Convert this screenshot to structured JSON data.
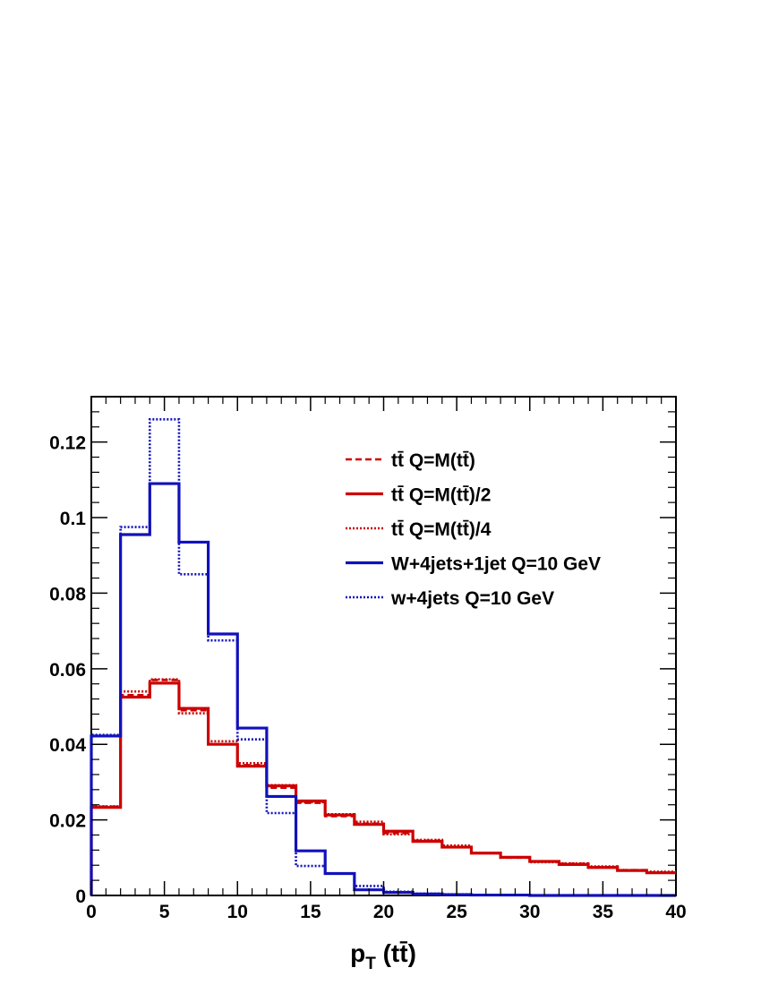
{
  "chart_data": {
    "type": "line",
    "style": "step-histogram",
    "xlabel": "p_T (tt̄)",
    "xlabel_parts": {
      "main": "p",
      "sub": "T",
      "rest": " (tt̄)"
    },
    "ylabel": "",
    "xlim": [
      0,
      40
    ],
    "ylim": [
      0,
      0.132
    ],
    "x_ticks": [
      0,
      5,
      10,
      15,
      20,
      25,
      30,
      35,
      40
    ],
    "y_ticks": [
      0,
      0.02,
      0.04,
      0.06,
      0.08,
      0.1,
      0.12
    ],
    "y_tick_labels": [
      "0",
      "0.02",
      "0.04",
      "0.06",
      "0.08",
      "0.1",
      "0.12"
    ],
    "grid": false,
    "legend_position": "top-right",
    "bin_edges": [
      0,
      2,
      4,
      6,
      8,
      10,
      12,
      14,
      16,
      18,
      20,
      22,
      24,
      26,
      28,
      30,
      32,
      34,
      36,
      38,
      40
    ],
    "series": [
      {
        "name": "tt̄ Q=M(tt̄)",
        "color": "#cc0000",
        "line_style": "dashed",
        "values": [
          0.0235,
          0.053,
          0.057,
          0.049,
          0.04,
          0.0345,
          0.0285,
          0.0245,
          0.021,
          0.019,
          0.0165,
          0.0145,
          0.0128,
          0.0112,
          0.01,
          0.009,
          0.0084,
          0.0075,
          0.0067,
          0.0061
        ]
      },
      {
        "name": "tt̄ Q=M(tt̄)/2",
        "color": "#cc0000",
        "line_style": "solid",
        "values": [
          0.0233,
          0.0525,
          0.0562,
          0.0495,
          0.04,
          0.0342,
          0.029,
          0.025,
          0.0213,
          0.0188,
          0.017,
          0.0143,
          0.0128,
          0.0112,
          0.0101,
          0.009,
          0.0082,
          0.0074,
          0.0066,
          0.006
        ]
      },
      {
        "name": "tt̄ Q=M(tt̄)/4",
        "color": "#cc0000",
        "line_style": "dotted",
        "values": [
          0.0236,
          0.054,
          0.0572,
          0.0482,
          0.0408,
          0.035,
          0.0292,
          0.0247,
          0.0215,
          0.0195,
          0.0162,
          0.0147,
          0.0132,
          0.0113,
          0.01,
          0.0088,
          0.0085,
          0.0077,
          0.0067,
          0.0063
        ]
      },
      {
        "name": "W+4jets+1jet Q=10 GeV",
        "color": "#1111bb",
        "line_style": "solid",
        "values": [
          0.0422,
          0.0955,
          0.109,
          0.0935,
          0.0692,
          0.0443,
          0.0262,
          0.0118,
          0.0058,
          0.0015,
          0.0008,
          0.0004,
          0.0002,
          0.0001,
          0.0001,
          0.0,
          0.0,
          0.0,
          0.0,
          0.0
        ]
      },
      {
        "name": "w+4jets Q=10 GeV",
        "color": "#1111bb",
        "line_style": "dotted",
        "values": [
          0.0425,
          0.0975,
          0.126,
          0.085,
          0.0675,
          0.0413,
          0.0218,
          0.0078,
          0.0058,
          0.0025,
          0.001,
          0.0005,
          0.0003,
          0.0001,
          0.0001,
          0.0,
          0.0,
          0.0,
          0.0,
          0.0
        ]
      }
    ]
  }
}
